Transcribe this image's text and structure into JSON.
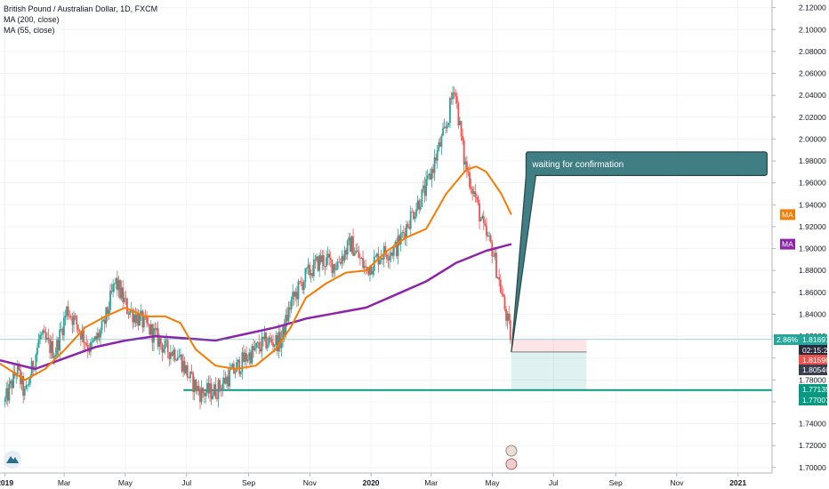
{
  "legend": {
    "symbol": "British Pound / Australian Dollar, 1D, FXCM",
    "ma200": "MA (200, close)",
    "ma55": "MA (55, close)"
  },
  "note": "waiting for confirmation",
  "colors": {
    "up": "#26a69a",
    "down": "#ef5350",
    "ma200": "#8e24aa",
    "ma55": "#f57c00",
    "support": "#089981",
    "note_bg": "#3f7f84"
  },
  "price_tags": [
    {
      "pct": "2.86%",
      "price": "1.81697",
      "color": "#26a69a"
    },
    {
      "price": "02:15:22",
      "color": "#262b3e"
    },
    {
      "price": "1.81596",
      "color": "#ef5350"
    },
    {
      "price": "1.80546",
      "color": "#3a3f50"
    },
    {
      "price": "1.77135",
      "color": "#089981"
    },
    {
      "price": "1.77007",
      "color": "#089981"
    }
  ],
  "ma_tags": [
    {
      "label": "MA",
      "price": 1.931,
      "color": "#f57c00"
    },
    {
      "label": "MA",
      "price": 1.904,
      "color": "#8e24aa"
    }
  ],
  "chart_data": {
    "type": "candlestick",
    "yticks": [
      "1.70000",
      "1.72000",
      "1.74000",
      "1.76000",
      "1.78000",
      "1.80000",
      "1.82000",
      "1.84000",
      "1.86000",
      "1.88000",
      "1.90000",
      "1.92000",
      "1.94000",
      "1.96000",
      "1.98000",
      "2.00000",
      "2.02000",
      "2.04000",
      "2.06000",
      "2.08000",
      "2.10000",
      "2.12000"
    ],
    "ylim": [
      1.695,
      2.127
    ],
    "xlabels": [
      "2019",
      "Mar",
      "May",
      "Jul",
      "Sep",
      "Nov",
      "2020",
      "Mar",
      "May",
      "Jul",
      "Sep",
      "Nov",
      "2021"
    ],
    "xlabel_days": [
      0,
      59,
      120,
      181,
      243,
      304,
      365,
      425,
      486,
      547,
      609,
      670,
      731
    ],
    "xlim_days": [
      -5,
      765
    ],
    "last_day": 505,
    "price_keypoints": [
      [
        0,
        1.76
      ],
      [
        12,
        1.79
      ],
      [
        20,
        1.765
      ],
      [
        35,
        1.82
      ],
      [
        50,
        1.805
      ],
      [
        62,
        1.845
      ],
      [
        72,
        1.83
      ],
      [
        85,
        1.808
      ],
      [
        98,
        1.828
      ],
      [
        110,
        1.87
      ],
      [
        122,
        1.845
      ],
      [
        135,
        1.835
      ],
      [
        150,
        1.82
      ],
      [
        160,
        1.808
      ],
      [
        172,
        1.805
      ],
      [
        185,
        1.78
      ],
      [
        195,
        1.768
      ],
      [
        210,
        1.77
      ],
      [
        225,
        1.785
      ],
      [
        240,
        1.8
      ],
      [
        260,
        1.815
      ],
      [
        275,
        1.815
      ],
      [
        285,
        1.85
      ],
      [
        300,
        1.875
      ],
      [
        315,
        1.89
      ],
      [
        330,
        1.885
      ],
      [
        345,
        1.905
      ],
      [
        360,
        1.88
      ],
      [
        375,
        1.895
      ],
      [
        390,
        1.9
      ],
      [
        405,
        1.93
      ],
      [
        420,
        1.955
      ],
      [
        432,
        1.99
      ],
      [
        440,
        2.01
      ],
      [
        448,
        2.05
      ],
      [
        458,
        1.98
      ],
      [
        468,
        1.95
      ],
      [
        478,
        1.915
      ],
      [
        486,
        1.9
      ],
      [
        495,
        1.86
      ],
      [
        505,
        1.816
      ]
    ],
    "ma200_keypoints": [
      [
        -5,
        1.798
      ],
      [
        30,
        1.79
      ],
      [
        60,
        1.8
      ],
      [
        90,
        1.81
      ],
      [
        120,
        1.816
      ],
      [
        150,
        1.82
      ],
      [
        180,
        1.818
      ],
      [
        210,
        1.816
      ],
      [
        240,
        1.822
      ],
      [
        270,
        1.828
      ],
      [
        300,
        1.836
      ],
      [
        330,
        1.841
      ],
      [
        360,
        1.846
      ],
      [
        390,
        1.858
      ],
      [
        420,
        1.87
      ],
      [
        450,
        1.887
      ],
      [
        480,
        1.898
      ],
      [
        505,
        1.904
      ]
    ],
    "ma55_keypoints": [
      [
        -5,
        1.795
      ],
      [
        20,
        1.78
      ],
      [
        40,
        1.79
      ],
      [
        60,
        1.808
      ],
      [
        80,
        1.828
      ],
      [
        100,
        1.838
      ],
      [
        120,
        1.846
      ],
      [
        140,
        1.838
      ],
      [
        160,
        1.838
      ],
      [
        175,
        1.832
      ],
      [
        190,
        1.808
      ],
      [
        210,
        1.793
      ],
      [
        230,
        1.79
      ],
      [
        250,
        1.793
      ],
      [
        270,
        1.808
      ],
      [
        285,
        1.828
      ],
      [
        300,
        1.855
      ],
      [
        320,
        1.868
      ],
      [
        340,
        1.878
      ],
      [
        360,
        1.88
      ],
      [
        380,
        1.897
      ],
      [
        400,
        1.91
      ],
      [
        420,
        1.918
      ],
      [
        440,
        1.95
      ],
      [
        460,
        1.972
      ],
      [
        470,
        1.975
      ],
      [
        480,
        1.97
      ],
      [
        495,
        1.95
      ],
      [
        505,
        1.931
      ]
    ],
    "support_level": 1.7707,
    "support_from_day": 178,
    "last_price": 1.81596,
    "position": {
      "from_day": 505,
      "to_day": 580,
      "entry": 1.8055,
      "stop": 1.817,
      "target": 1.7714
    },
    "callout": {
      "anchor_day": 505,
      "anchor_price": 1.8055,
      "box_from_day": 517,
      "box_to_day": 760,
      "box_top": 1.985,
      "box_bottom": 1.97
    }
  }
}
